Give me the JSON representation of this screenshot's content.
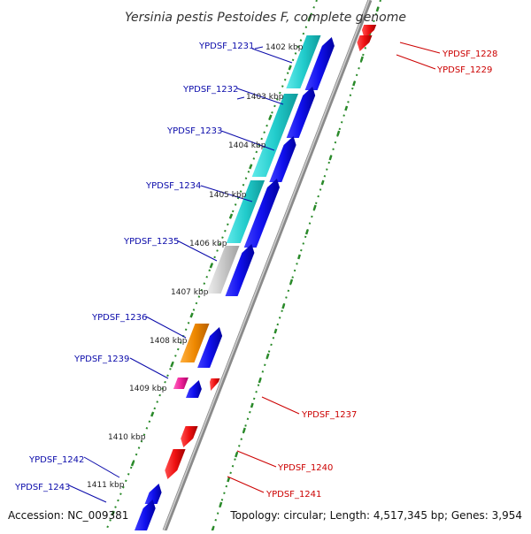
{
  "title": "Yersinia pestis Pestoides F, complete genome",
  "footer": {
    "accession": "Accession: NC_009381",
    "summary": "Topology: circular; Length: 4,517,345 bp; Genes: 3,954"
  },
  "colors": {
    "forward_gene": "#1010ee",
    "reverse_gene": "#ee1010",
    "forward_label": "#0a0aaa",
    "reverse_label": "#cc0000",
    "backbone": "#888888",
    "tick": "#2a8a2a",
    "cds_cyan": "#22cccc",
    "cds_gray": "#c8c8c8",
    "cds_orange": "#ee8800",
    "cds_magenta": "#ee2299"
  },
  "scale_labels": [
    "1402 kbp",
    "1403 kbp",
    "1404 kbp",
    "1405 kbp",
    "1406 kbp",
    "1407 kbp",
    "1408 kbp",
    "1409 kbp",
    "1410 kbp",
    "1411 kbp"
  ],
  "forward_labels": [
    "YPDSF_1231",
    "YPDSF_1232",
    "YPDSF_1233",
    "YPDSF_1234",
    "YPDSF_1235",
    "YPDSF_1236",
    "YPDSF_1239",
    "YPDSF_1242",
    "YPDSF_1243"
  ],
  "reverse_labels": [
    "YPDSF_1228",
    "YPDSF_1229",
    "YPDSF_1237",
    "YPDSF_1240",
    "YPDSF_1241"
  ]
}
